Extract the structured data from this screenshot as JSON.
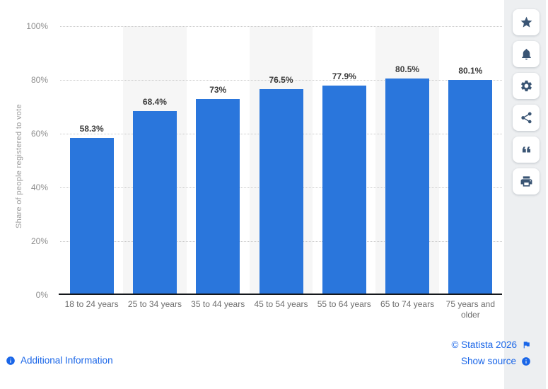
{
  "chart_data": {
    "type": "bar",
    "categories": [
      "18 to 24 years",
      "25 to 34 years",
      "35 to 44 years",
      "45 to 54 years",
      "55 to 64 years",
      "65 to 74 years",
      "75 years and older"
    ],
    "values": [
      58.3,
      68.4,
      73,
      76.5,
      77.9,
      80.5,
      80.1
    ],
    "value_labels": [
      "58.3%",
      "68.4%",
      "73%",
      "76.5%",
      "77.9%",
      "80.5%",
      "80.1%"
    ],
    "title": "",
    "xlabel": "",
    "ylabel": "Share of people registered to vote",
    "ylim": [
      0,
      100
    ],
    "ytick_labels": [
      "0%",
      "20%",
      "40%",
      "60%",
      "80%",
      "100%"
    ],
    "grid": "horizontal-dotted",
    "legend": "none",
    "colors": {
      "bar": "#2a76dc",
      "alt_column_bg": "#f6f6f6",
      "gridline": "#c9c9c9",
      "axis": "#15181c",
      "value_label": "#3a3a3a",
      "tick_label": "#8e8e8e",
      "category_label": "#6d6d6d"
    }
  },
  "toolbar": {
    "buttons": [
      {
        "id": "favorite-button",
        "icon": "star-icon"
      },
      {
        "id": "notification-button",
        "icon": "bell-icon"
      },
      {
        "id": "settings-button",
        "icon": "gear-icon"
      },
      {
        "id": "share-button",
        "icon": "share-icon"
      },
      {
        "id": "cite-button",
        "icon": "quote-icon"
      },
      {
        "id": "print-button",
        "icon": "print-icon"
      }
    ]
  },
  "footer": {
    "additional_info_label": "Additional Information",
    "copyright_label": "© Statista 2026",
    "show_source_label": "Show source",
    "link_color": "#1a66e8"
  }
}
